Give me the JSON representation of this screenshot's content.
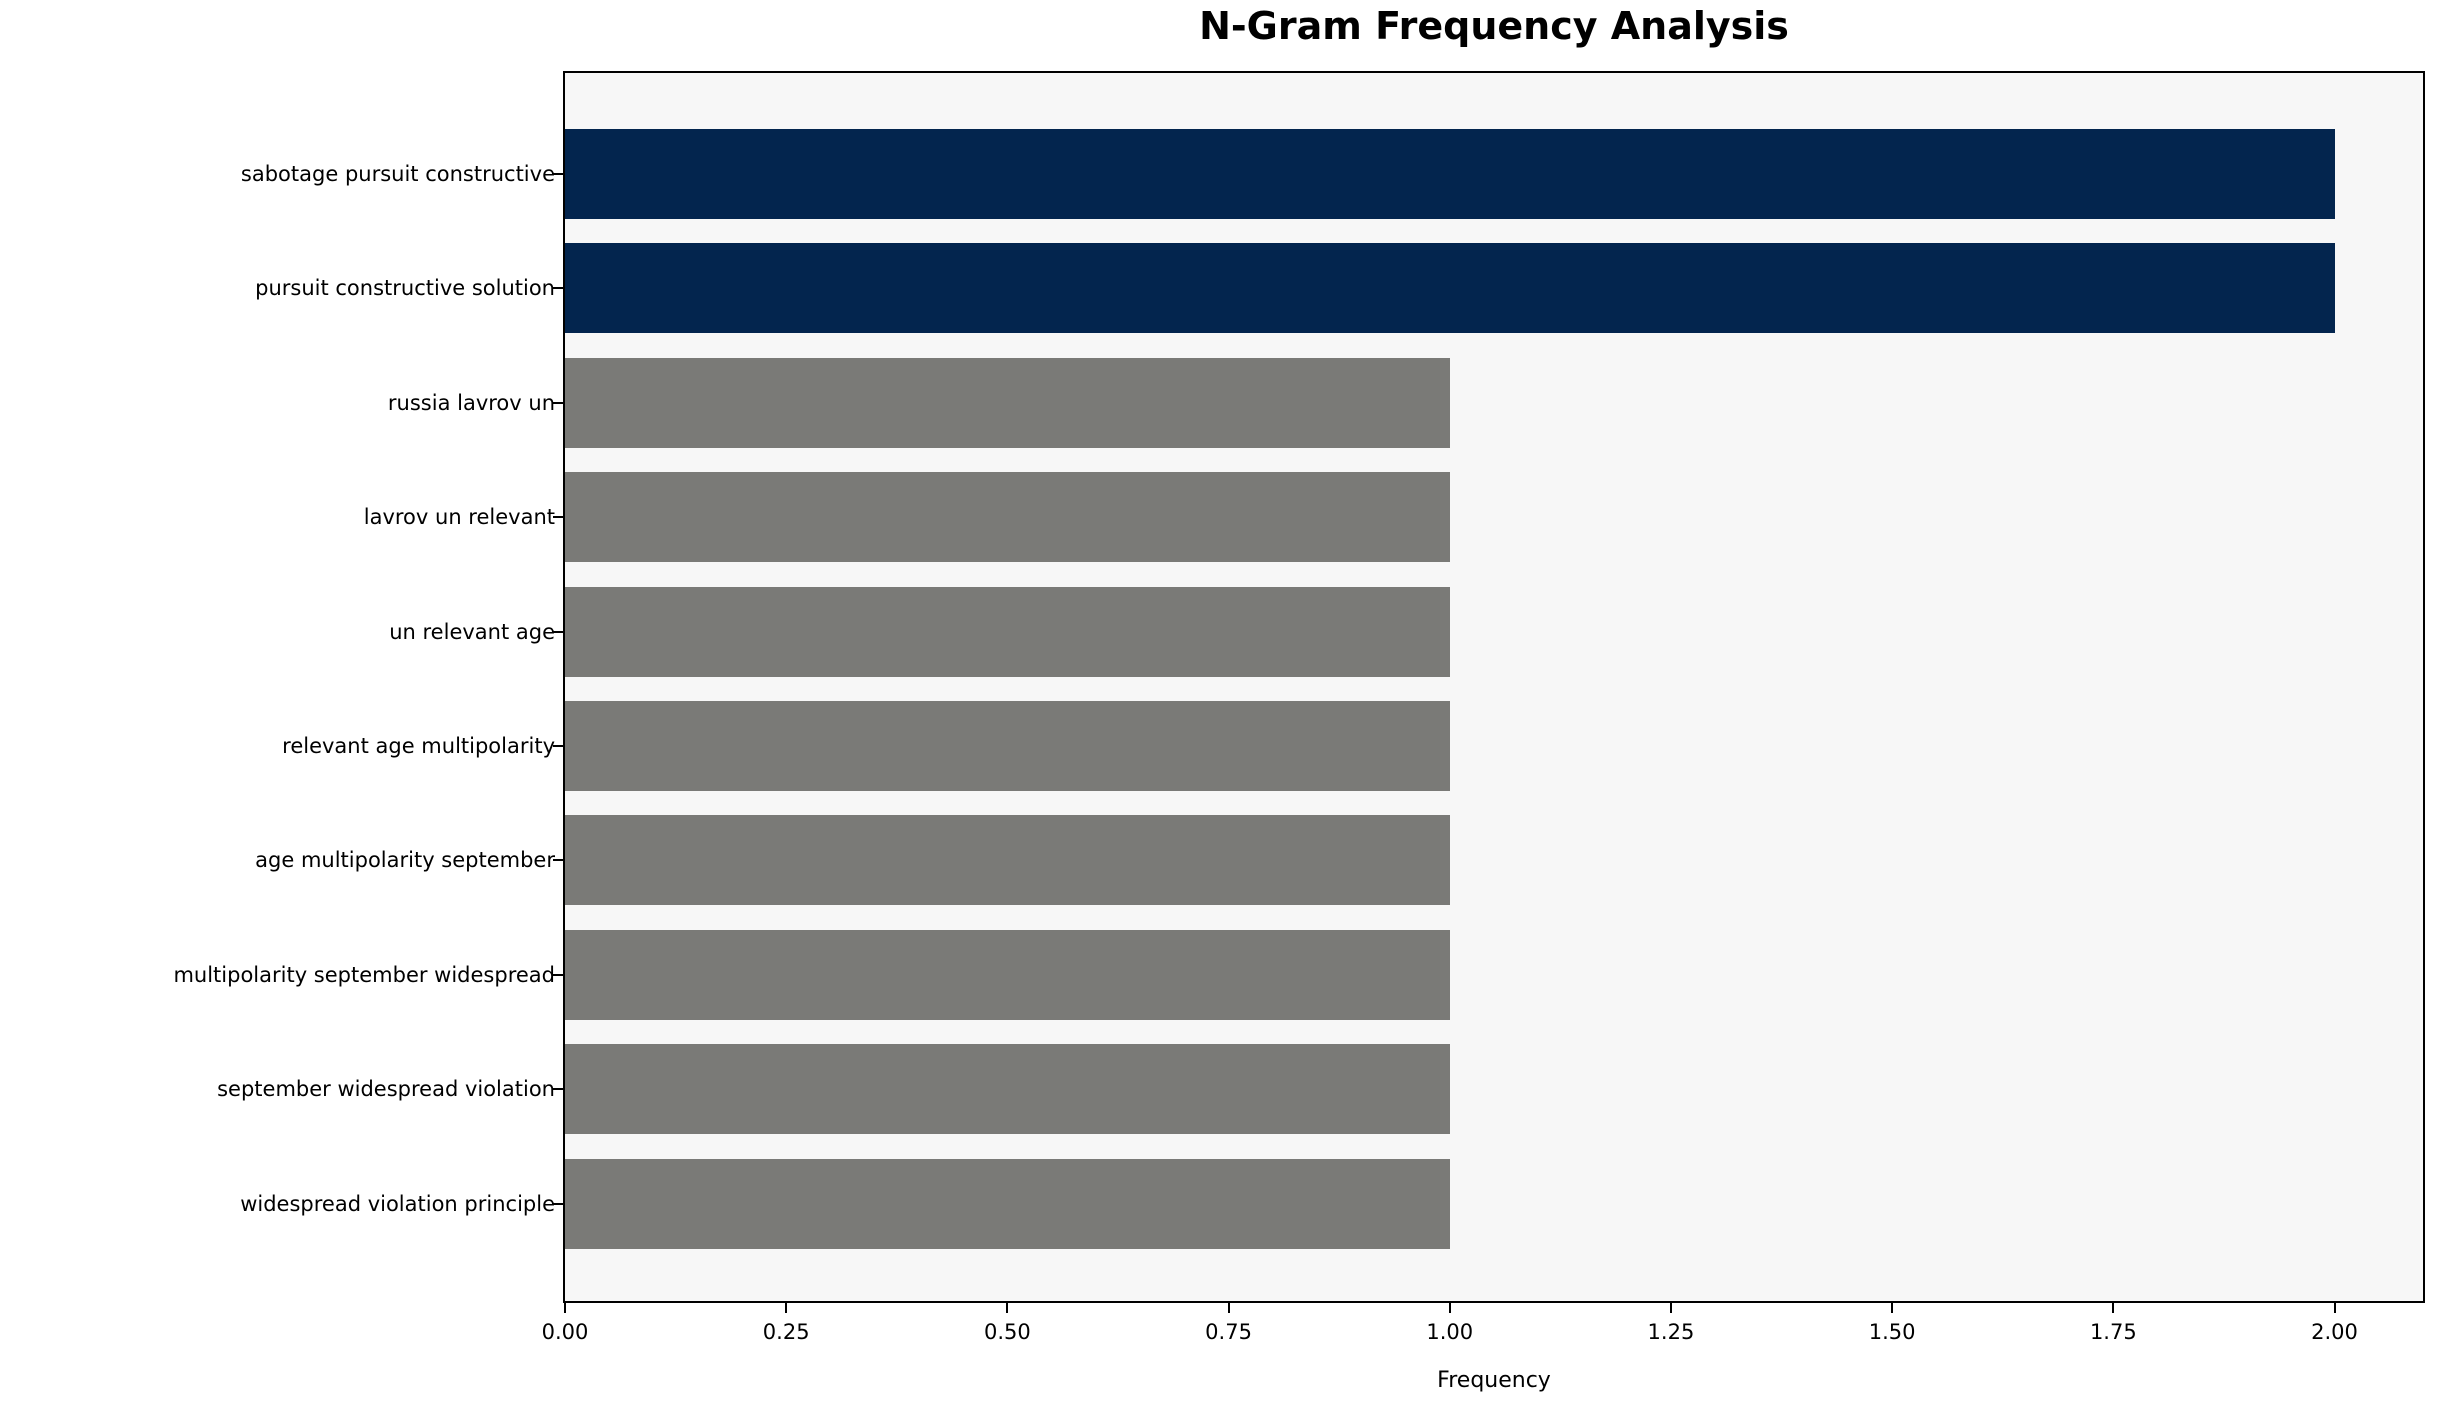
{
  "title": "N-Gram Frequency Analysis",
  "chart_data": {
    "type": "bar",
    "orientation": "horizontal",
    "title": "N-Gram Frequency Analysis",
    "xlabel": "Frequency",
    "ylabel": "",
    "categories": [
      "sabotage pursuit constructive",
      "pursuit constructive solution",
      "russia lavrov un",
      "lavrov un relevant",
      "un relevant age",
      "relevant age multipolarity",
      "age multipolarity september",
      "multipolarity september widespread",
      "september widespread violation",
      "widespread violation principle"
    ],
    "values": [
      2,
      2,
      1,
      1,
      1,
      1,
      1,
      1,
      1,
      1
    ],
    "bar_colors": [
      "#03254e",
      "#03254e",
      "#7a7a77",
      "#7a7a77",
      "#7a7a77",
      "#7a7a77",
      "#7a7a77",
      "#7a7a77",
      "#7a7a77",
      "#7a7a77"
    ],
    "highlight_color": "#03254e",
    "default_color": "#7a7a77",
    "xlim": [
      0,
      2.1
    ],
    "x_ticks": [
      0.0,
      0.25,
      0.5,
      0.75,
      1.0,
      1.25,
      1.5,
      1.75,
      2.0
    ],
    "x_tick_labels": [
      "0.00",
      "0.25",
      "0.50",
      "0.75",
      "1.00",
      "1.25",
      "1.50",
      "1.75",
      "2.00"
    ],
    "grid": false,
    "legend": null,
    "plot_background": "#f7f7f7",
    "figure_background": "#ffffff"
  }
}
